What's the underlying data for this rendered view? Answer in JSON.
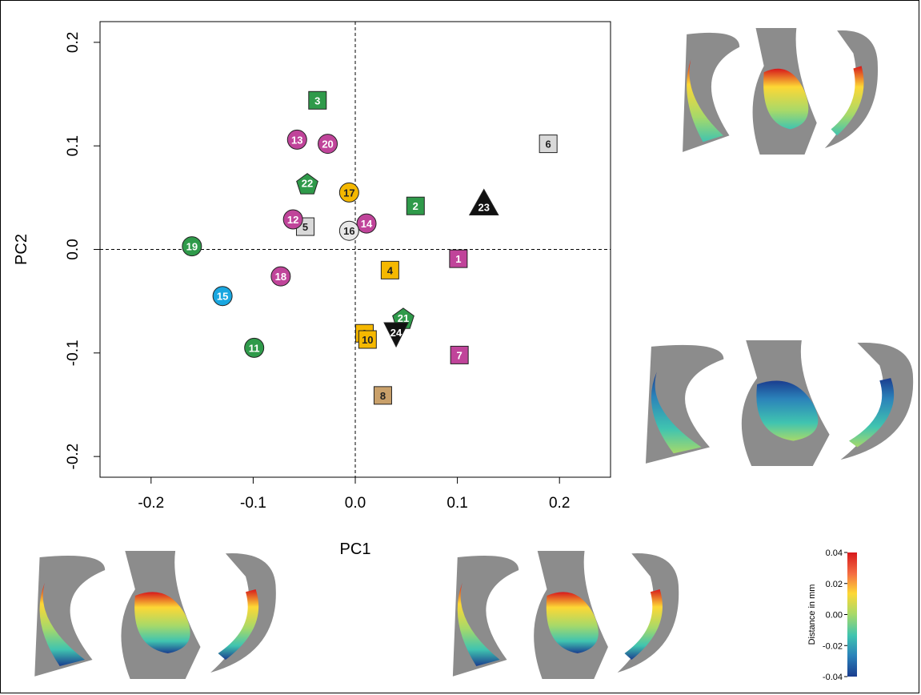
{
  "chart_data": {
    "type": "scatter",
    "xlabel": "PC1",
    "ylabel": "PC2",
    "xlim": [
      -0.25,
      0.25
    ],
    "ylim": [
      -0.22,
      0.22
    ],
    "xticks": [
      "-0.2",
      "-0.1",
      "0.0",
      "0.1",
      "0.2"
    ],
    "yticks": [
      "-0.2",
      "-0.1",
      "0.0",
      "0.1",
      "0.2"
    ],
    "reference_lines": {
      "x": 0,
      "y": 0,
      "style": "dashed"
    },
    "grid": false,
    "points": [
      {
        "label": "1",
        "x": 0.101,
        "y": -0.009,
        "shape": "square",
        "color": "#c0449a"
      },
      {
        "label": "2",
        "x": 0.059,
        "y": 0.042,
        "shape": "square",
        "color": "#2f9a4a"
      },
      {
        "label": "3",
        "x": -0.037,
        "y": 0.144,
        "shape": "square",
        "color": "#2f9a4a"
      },
      {
        "label": "4",
        "x": 0.034,
        "y": -0.02,
        "shape": "square",
        "color": "#f5b800"
      },
      {
        "label": "5",
        "x": -0.049,
        "y": 0.022,
        "shape": "square",
        "color": "#d9d9d9"
      },
      {
        "label": "6",
        "x": 0.189,
        "y": 0.102,
        "shape": "square",
        "color": "#d9d9d9"
      },
      {
        "label": "7",
        "x": 0.102,
        "y": -0.102,
        "shape": "square",
        "color": "#c0449a"
      },
      {
        "label": "8",
        "x": 0.027,
        "y": -0.141,
        "shape": "square",
        "color": "#c9a06a"
      },
      {
        "label": "9",
        "x": 0.009,
        "y": -0.081,
        "shape": "square",
        "color": "#f5b800"
      },
      {
        "label": "10",
        "x": 0.012,
        "y": -0.087,
        "shape": "square",
        "color": "#f5b800"
      },
      {
        "label": "11",
        "x": -0.099,
        "y": -0.095,
        "shape": "circle",
        "color": "#2f9a4a"
      },
      {
        "label": "12",
        "x": -0.061,
        "y": 0.029,
        "shape": "circle",
        "color": "#c0449a"
      },
      {
        "label": "13",
        "x": -0.057,
        "y": 0.106,
        "shape": "circle",
        "color": "#c0449a"
      },
      {
        "label": "14",
        "x": 0.011,
        "y": 0.025,
        "shape": "circle",
        "color": "#c0449a"
      },
      {
        "label": "15",
        "x": -0.13,
        "y": -0.045,
        "shape": "circle",
        "color": "#1aa7e0"
      },
      {
        "label": "16",
        "x": -0.006,
        "y": 0.018,
        "shape": "circle",
        "color": "#e8e8e8"
      },
      {
        "label": "17",
        "x": -0.006,
        "y": 0.055,
        "shape": "circle",
        "color": "#f5b800"
      },
      {
        "label": "18",
        "x": -0.073,
        "y": -0.026,
        "shape": "circle",
        "color": "#c0449a"
      },
      {
        "label": "19",
        "x": -0.16,
        "y": 0.003,
        "shape": "circle",
        "color": "#2f9a4a"
      },
      {
        "label": "20",
        "x": -0.027,
        "y": 0.102,
        "shape": "circle",
        "color": "#c0449a"
      },
      {
        "label": "21",
        "x": 0.047,
        "y": -0.066,
        "shape": "pentagon",
        "color": "#2f9a4a"
      },
      {
        "label": "22",
        "x": -0.047,
        "y": 0.064,
        "shape": "pentagon",
        "color": "#2f9a4a"
      },
      {
        "label": "23",
        "x": 0.126,
        "y": 0.041,
        "shape": "triangle-up",
        "color": "#111111"
      },
      {
        "label": "24",
        "x": 0.04,
        "y": -0.08,
        "shape": "triangle-down",
        "color": "#111111"
      }
    ]
  },
  "colorbar": {
    "title": "Distance in mm",
    "ticks": [
      "0.04",
      "0.02",
      "0.00",
      "-0.02",
      "-0.04"
    ],
    "colors": [
      "#d7191c",
      "#f46d43",
      "#fdd835",
      "#a6d96a",
      "#40c4b0",
      "#2b83ba",
      "#1a3d8f"
    ]
  },
  "colors": {
    "background": "#ffffff",
    "axis": "#000000",
    "bone": "#8c8c8c"
  }
}
